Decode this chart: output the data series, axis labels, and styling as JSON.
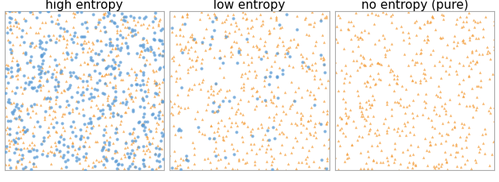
{
  "titles": [
    "high entropy",
    "low entropy",
    "no entropy (pure)"
  ],
  "title_fontsize": 11,
  "orange_color": "#f5a040",
  "blue_color": "#5b9bd5",
  "panel_counts": [
    {
      "orange_tri": 500,
      "blue_circle": 500
    },
    {
      "orange_tri": 500,
      "blue_circle": 80
    },
    {
      "orange_tri": 500,
      "blue_circle": 0
    }
  ],
  "marker_size_tri": 6,
  "marker_size_circle": 8,
  "alpha_tri": 0.75,
  "alpha_circle": 0.75,
  "figsize": [
    6.27,
    2.3
  ],
  "dpi": 100,
  "seed": 42,
  "background_color": "#ffffff",
  "border_color": "#aaaaaa",
  "border_linewidth": 0.8
}
